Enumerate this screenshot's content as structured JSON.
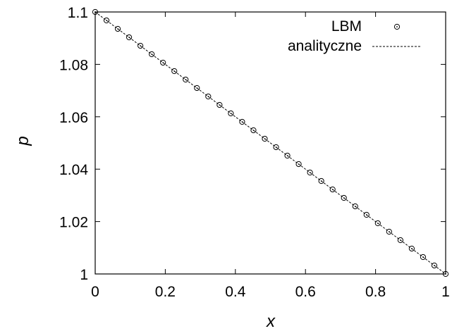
{
  "chart_data": {
    "type": "line",
    "title": "",
    "xlabel": "x",
    "ylabel": "p",
    "xlim": [
      0,
      1
    ],
    "ylim": [
      1,
      1.1
    ],
    "x_ticks": [
      0,
      0.2,
      0.4,
      0.6,
      0.8,
      1
    ],
    "x_tick_labels": [
      "0",
      "0.2",
      "0.4",
      "0.6",
      "0.8",
      "1"
    ],
    "y_ticks": [
      1,
      1.02,
      1.04,
      1.06,
      1.08,
      1.1
    ],
    "y_tick_labels": [
      "1",
      "1.02",
      "1.04",
      "1.06",
      "1.08",
      "1.1"
    ],
    "grid": false,
    "legend_position": "top-right",
    "series": [
      {
        "name": "LBM",
        "style": "markers",
        "marker": "circle-dot",
        "color": "#000000",
        "x": [
          0,
          0.03226,
          0.06452,
          0.09677,
          0.12903,
          0.16129,
          0.19355,
          0.22581,
          0.25806,
          0.29032,
          0.32258,
          0.35484,
          0.3871,
          0.41935,
          0.45161,
          0.48387,
          0.51613,
          0.54839,
          0.58065,
          0.6129,
          0.64516,
          0.67742,
          0.70968,
          0.74194,
          0.77419,
          0.80645,
          0.83871,
          0.87097,
          0.90323,
          0.93548,
          0.96774,
          1
        ],
        "y": [
          1.1,
          1.09677,
          1.09355,
          1.09032,
          1.0871,
          1.08387,
          1.08065,
          1.07742,
          1.07419,
          1.07097,
          1.06774,
          1.06452,
          1.06129,
          1.05806,
          1.05484,
          1.05161,
          1.04839,
          1.04516,
          1.04194,
          1.03871,
          1.03548,
          1.03226,
          1.02903,
          1.02581,
          1.02258,
          1.01935,
          1.01613,
          1.0129,
          1.00968,
          1.00645,
          1.00323,
          1
        ]
      },
      {
        "name": "analityczne",
        "style": "dashed-line",
        "color": "#000000",
        "x": [
          0,
          1
        ],
        "y": [
          1.1,
          1
        ]
      }
    ]
  }
}
